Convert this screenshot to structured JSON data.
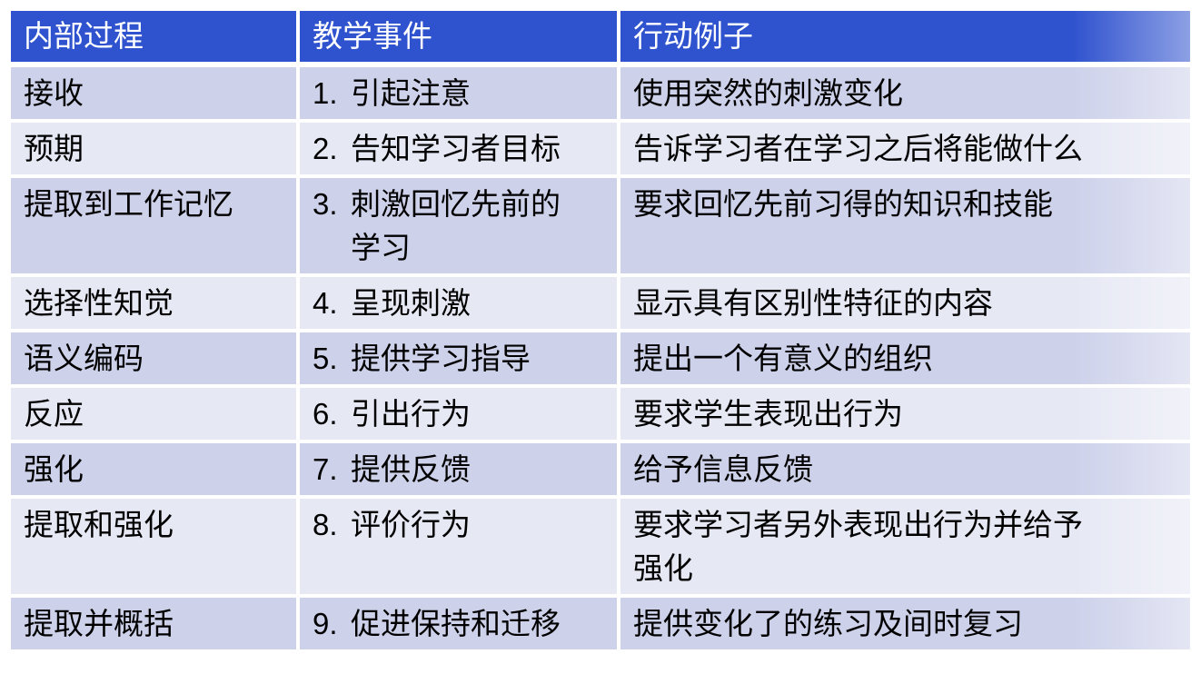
{
  "table": {
    "headers": [
      "内部过程",
      "教学事件",
      "行动例子"
    ],
    "rows": [
      {
        "process": "接收",
        "event_num": "1.",
        "event": "引起注意",
        "example": "使用突然的刺激变化"
      },
      {
        "process": "预期",
        "event_num": "2.",
        "event": "告知学习者目标",
        "example": "告诉学习者在学习之后将能做什么"
      },
      {
        "process": "提取到工作记忆",
        "event_num": "3.",
        "event": "刺激回忆先前的\n学习",
        "example": "要求回忆先前习得的知识和技能"
      },
      {
        "process": "选择性知觉",
        "event_num": "4.",
        "event": "呈现刺激",
        "example": "显示具有区别性特征的内容"
      },
      {
        "process": "语义编码",
        "event_num": "5.",
        "event": "提供学习指导",
        "example": "提出一个有意义的组织"
      },
      {
        "process": "反应",
        "event_num": "6.",
        "event": "引出行为",
        "example": "要求学生表现出行为"
      },
      {
        "process": "强化",
        "event_num": "7.",
        "event": "提供反馈",
        "example": "给予信息反馈"
      },
      {
        "process": "提取和强化",
        "event_num": "8.",
        "event": "评价行为",
        "example": "要求学习者另外表现出行为并给予\n强化"
      },
      {
        "process": "提取并概括",
        "event_num": "9.",
        "event": "促进保持和迁移",
        "example": "提供变化了的练习及间时复习"
      }
    ],
    "colors": {
      "page_bg": "#FFFFFF",
      "header_bg": "#2F52CE",
      "header_text": "#FFFFFF",
      "row_odd_bg": "#CDD1EA",
      "row_even_bg": "#E6E8F4",
      "body_text": "#000000",
      "grid_gap": "#FFFFFF"
    }
  }
}
